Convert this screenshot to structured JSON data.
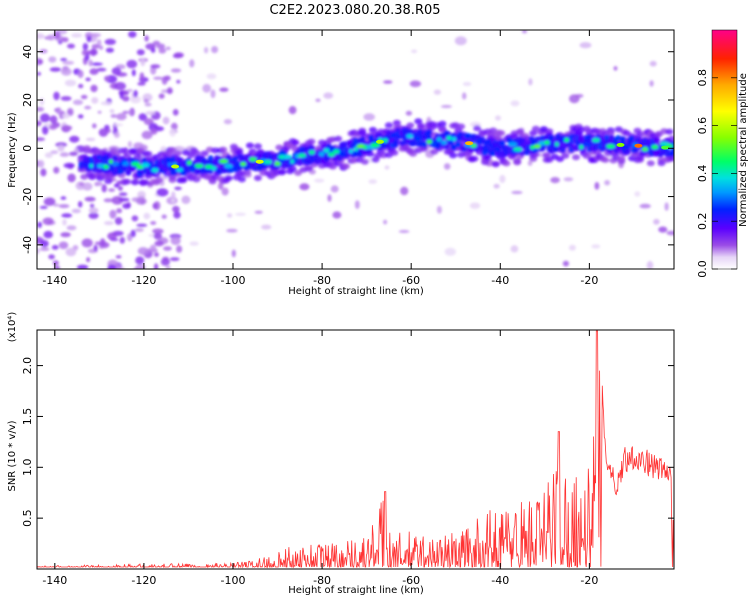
{
  "title": "C2E2.2023.080.20.38.R05",
  "chart_data": [
    {
      "type": "heatmap",
      "xlabel": "Height of straight line (km)",
      "ylabel": "Frequency (Hz)",
      "xlim": [
        -144,
        -1
      ],
      "ylim": [
        -50,
        49
      ],
      "xticks": [
        -140,
        -120,
        -100,
        -80,
        -60,
        -40,
        -20
      ],
      "yticks": [
        -40,
        -20,
        0,
        20,
        40
      ],
      "colorbar": {
        "label": "Normalized spectral amplitude",
        "range": [
          0,
          1
        ],
        "ticks": [
          "0.0",
          "0.2",
          "0.4",
          "0.6",
          "0.8"
        ],
        "tick_values": [
          0.0,
          0.2,
          0.4,
          0.6,
          0.8
        ],
        "colormap": [
          "#ffffff",
          "#e6d4f7",
          "#9a4ce6",
          "#5a00ff",
          "#0022ff",
          "#0099ff",
          "#00e0e0",
          "#00ff66",
          "#88ff00",
          "#ffff00",
          "#ffaa00",
          "#ff2200",
          "#ff0088"
        ]
      },
      "ridge": {
        "description_points_x": [
          -134,
          -120,
          -105,
          -90,
          -75,
          -62,
          -50,
          -40,
          -30,
          -20,
          -8,
          -1
        ],
        "description_points_y": [
          -6,
          -8,
          -7,
          -5,
          -1,
          5,
          3,
          0,
          2,
          2,
          1,
          0
        ]
      }
    },
    {
      "type": "line",
      "xlabel": "Height of straight line (km)",
      "ylabel": "SNR (10 * v/v)",
      "yscale_label": "(x10⁴)",
      "xlim": [
        -144,
        -1
      ],
      "ylim": [
        0,
        2.35
      ],
      "xticks": [
        -140,
        -120,
        -100,
        -80,
        -60,
        -40,
        -20
      ],
      "yticks": [
        0.5,
        1.0,
        1.5,
        2.0
      ],
      "ytick_labels": [
        "0.5",
        "1.0",
        "1.5",
        "2.0"
      ],
      "series": [
        {
          "color": "#ff3333",
          "envelope_x": [
            -144,
            -120,
            -100,
            -95,
            -90,
            -85,
            -80,
            -75,
            -70,
            -66,
            -64,
            -60,
            -55,
            -50,
            -45,
            -40,
            -35,
            -30,
            -27,
            -25,
            -22,
            -20,
            -18,
            -16,
            -14,
            -12,
            -10,
            -8,
            -6,
            -4,
            -2,
            -1
          ],
          "envelope_y": [
            0.03,
            0.05,
            0.06,
            0.1,
            0.18,
            0.25,
            0.28,
            0.3,
            0.33,
            0.76,
            0.35,
            0.38,
            0.33,
            0.38,
            0.5,
            0.65,
            0.72,
            0.8,
            1.36,
            0.95,
            1.05,
            1.0,
            2.34,
            1.2,
            0.9,
            1.22,
            1.25,
            1.2,
            1.15,
            1.1,
            1.05,
            1.0
          ]
        }
      ]
    }
  ]
}
